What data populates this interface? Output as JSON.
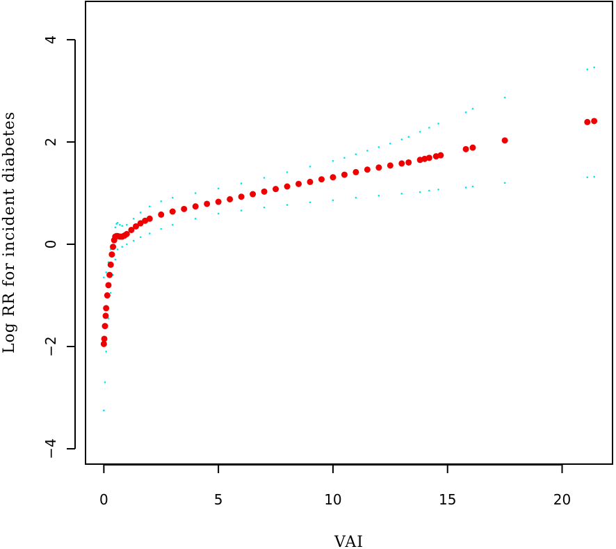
{
  "chart_data": {
    "type": "scatter",
    "title": "",
    "xlabel": "VAI",
    "ylabel": "Log RR for incident diabetes",
    "xlim": [
      -0.8,
      22.2
    ],
    "ylim": [
      -4.3,
      4.75
    ],
    "xticks": [
      0,
      5,
      10,
      15,
      20
    ],
    "yticks": [
      -4,
      -2,
      0,
      2,
      4
    ],
    "grid": false,
    "legend": "none",
    "colors": {
      "estimate": "#ee0000",
      "ci": "#00e5ee",
      "axis": "#000000"
    },
    "series": [
      {
        "role": "estimate",
        "style": "points",
        "x": [
          0.0,
          0.02,
          0.05,
          0.08,
          0.1,
          0.15,
          0.2,
          0.25,
          0.3,
          0.35,
          0.4,
          0.45,
          0.5,
          0.55,
          0.6,
          0.7,
          0.8,
          0.9,
          1.0,
          1.2,
          1.4,
          1.6,
          1.8,
          2.0,
          2.5,
          3.0,
          3.5,
          4.0,
          4.5,
          5.0,
          5.5,
          6.0,
          6.5,
          7.0,
          7.5,
          8.0,
          8.5,
          9.0,
          9.5,
          10.0,
          10.5,
          11.0,
          11.5,
          12.0,
          12.5,
          13.0,
          13.3,
          13.8,
          14.0,
          14.2,
          14.5,
          14.7,
          15.8,
          16.1,
          17.5,
          21.1,
          21.4
        ],
        "y": [
          -1.95,
          -1.85,
          -1.6,
          -1.4,
          -1.25,
          -1.0,
          -0.8,
          -0.6,
          -0.4,
          -0.2,
          -0.05,
          0.08,
          0.15,
          0.16,
          0.16,
          0.15,
          0.15,
          0.17,
          0.2,
          0.28,
          0.35,
          0.41,
          0.46,
          0.5,
          0.58,
          0.64,
          0.69,
          0.74,
          0.79,
          0.83,
          0.88,
          0.93,
          0.98,
          1.03,
          1.08,
          1.13,
          1.18,
          1.22,
          1.27,
          1.31,
          1.36,
          1.41,
          1.46,
          1.5,
          1.54,
          1.58,
          1.6,
          1.65,
          1.67,
          1.69,
          1.72,
          1.74,
          1.86,
          1.89,
          2.03,
          2.39,
          2.41
        ]
      },
      {
        "role": "upper_ci",
        "style": "dots",
        "x": [
          0.0,
          0.1,
          0.2,
          0.3,
          0.4,
          0.5,
          0.55,
          0.6,
          0.7,
          0.8,
          1.0,
          1.3,
          1.6,
          2.0,
          2.5,
          3.0,
          4.0,
          5.0,
          6.0,
          7.0,
          8.0,
          9.0,
          10.0,
          10.5,
          11.0,
          11.5,
          12.0,
          12.5,
          13.0,
          13.3,
          13.8,
          14.2,
          14.6,
          15.8,
          16.1,
          17.5,
          21.1,
          21.4
        ],
        "y": [
          -0.65,
          -0.55,
          -0.35,
          -0.1,
          0.15,
          0.33,
          0.4,
          0.42,
          0.38,
          0.36,
          0.38,
          0.5,
          0.62,
          0.74,
          0.84,
          0.91,
          1.0,
          1.09,
          1.19,
          1.3,
          1.41,
          1.52,
          1.63,
          1.69,
          1.76,
          1.83,
          1.9,
          1.97,
          2.05,
          2.1,
          2.2,
          2.28,
          2.36,
          2.58,
          2.65,
          2.87,
          3.42,
          3.46
        ]
      },
      {
        "role": "lower_ci",
        "style": "dots",
        "x": [
          0.0,
          0.05,
          0.1,
          0.2,
          0.3,
          0.4,
          0.5,
          0.6,
          0.8,
          1.0,
          1.3,
          1.6,
          2.0,
          2.5,
          3.0,
          4.0,
          5.0,
          6.0,
          7.0,
          8.0,
          9.0,
          10.0,
          11.0,
          12.0,
          13.0,
          13.8,
          14.2,
          14.6,
          15.8,
          16.1,
          17.5,
          21.1,
          21.4
        ],
        "y": [
          -3.25,
          -2.7,
          -2.1,
          -1.45,
          -0.95,
          -0.6,
          -0.3,
          -0.1,
          -0.05,
          0.0,
          0.07,
          0.14,
          0.21,
          0.3,
          0.38,
          0.5,
          0.6,
          0.66,
          0.72,
          0.77,
          0.82,
          0.86,
          0.91,
          0.95,
          0.99,
          1.02,
          1.05,
          1.07,
          1.11,
          1.13,
          1.2,
          1.31,
          1.32
        ]
      }
    ]
  }
}
